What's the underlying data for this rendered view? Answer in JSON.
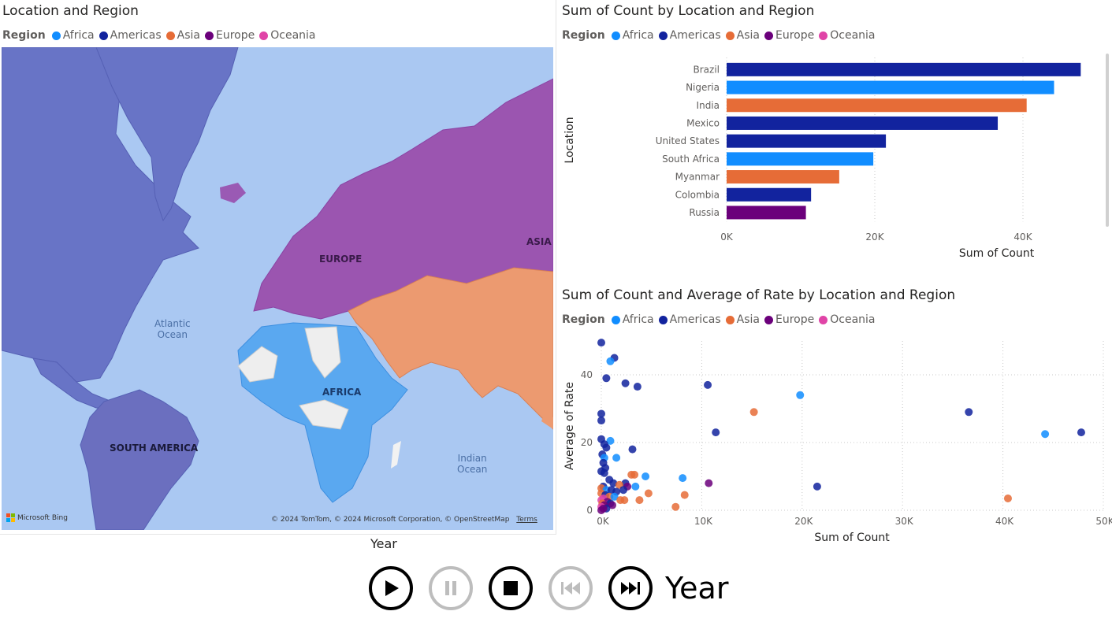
{
  "legend": {
    "title": "Region",
    "items": [
      {
        "label": "Africa",
        "color": "#118dff"
      },
      {
        "label": "Americas",
        "color": "#12239e"
      },
      {
        "label": "Asia",
        "color": "#e66c37"
      },
      {
        "label": "Europe",
        "color": "#6b007b"
      },
      {
        "label": "Oceania",
        "color": "#e044a7"
      }
    ]
  },
  "map": {
    "title": "Location and Region",
    "labels": {
      "europe": "EUROPE",
      "asia": "ASIA",
      "africa": "AFRICA",
      "south_america": "SOUTH AMERICA",
      "atlantic": "Atlantic\nOcean",
      "indian": "Indian\nOcean"
    },
    "brand": "Microsoft Bing",
    "attribution": "© 2024 TomTom, © 2024 Microsoft Corporation, © OpenStreetMap",
    "terms": "Terms"
  },
  "play_axis": {
    "caption": "Year",
    "label": "Year",
    "buttons": [
      {
        "name": "play-icon",
        "enabled": true
      },
      {
        "name": "pause-icon",
        "enabled": false
      },
      {
        "name": "stop-icon",
        "enabled": true
      },
      {
        "name": "previous-icon",
        "enabled": false
      },
      {
        "name": "next-icon",
        "enabled": true
      }
    ]
  },
  "chart_data": [
    {
      "type": "bar",
      "orientation": "horizontal",
      "title": "Sum of Count by Location and Region",
      "xlabel": "Sum of Count",
      "ylabel": "Location",
      "xlim": [
        0,
        50000
      ],
      "xticks": [
        "0K",
        "20K",
        "40K"
      ],
      "xtick_values": [
        0,
        20000,
        40000
      ],
      "grid": true,
      "legend_position": "top-left",
      "categories": [
        "Brazil",
        "Nigeria",
        "India",
        "Mexico",
        "United States",
        "South Africa",
        "Myanmar",
        "Colombia",
        "Russia"
      ],
      "values": [
        47800,
        44200,
        40500,
        36600,
        21500,
        19800,
        15200,
        11400,
        10700
      ],
      "regions": [
        "Americas",
        "Africa",
        "Asia",
        "Americas",
        "Americas",
        "Africa",
        "Asia",
        "Americas",
        "Europe"
      ]
    },
    {
      "type": "scatter",
      "title": "Sum of Count and Average of Rate by Location and Region",
      "xlabel": "Sum of Count",
      "ylabel": "Average of Rate",
      "xlim": [
        0,
        50000
      ],
      "ylim": [
        0,
        50
      ],
      "xticks": [
        "0K",
        "10K",
        "20K",
        "30K",
        "40K",
        "50K"
      ],
      "xtick_values": [
        0,
        10000,
        20000,
        30000,
        40000,
        50000
      ],
      "yticks": [
        "0",
        "20",
        "40"
      ],
      "ytick_values": [
        0,
        20,
        40
      ],
      "grid": true,
      "legend_position": "top-left",
      "points": [
        {
          "x": 0,
          "y": 49.5,
          "region": "Americas"
        },
        {
          "x": 1300,
          "y": 45,
          "region": "Americas"
        },
        {
          "x": 900,
          "y": 44,
          "region": "Africa"
        },
        {
          "x": 500,
          "y": 39,
          "region": "Americas"
        },
        {
          "x": 2400,
          "y": 37.5,
          "region": "Americas"
        },
        {
          "x": 3600,
          "y": 36.5,
          "region": "Americas"
        },
        {
          "x": 10600,
          "y": 37,
          "region": "Americas"
        },
        {
          "x": 19800,
          "y": 34,
          "region": "Africa"
        },
        {
          "x": 15200,
          "y": 29,
          "region": "Asia"
        },
        {
          "x": 36600,
          "y": 29,
          "region": "Americas"
        },
        {
          "x": 0,
          "y": 28.5,
          "region": "Americas"
        },
        {
          "x": 0,
          "y": 26.5,
          "region": "Americas"
        },
        {
          "x": 11400,
          "y": 23,
          "region": "Americas"
        },
        {
          "x": 44200,
          "y": 22.5,
          "region": "Africa"
        },
        {
          "x": 47800,
          "y": 23,
          "region": "Americas"
        },
        {
          "x": 0,
          "y": 21,
          "region": "Americas"
        },
        {
          "x": 900,
          "y": 20.5,
          "region": "Africa"
        },
        {
          "x": 300,
          "y": 19.5,
          "region": "Americas"
        },
        {
          "x": 500,
          "y": 18.5,
          "region": "Americas"
        },
        {
          "x": 3100,
          "y": 18,
          "region": "Americas"
        },
        {
          "x": 100,
          "y": 16.5,
          "region": "Americas"
        },
        {
          "x": 300,
          "y": 15.5,
          "region": "Africa"
        },
        {
          "x": 1500,
          "y": 15.5,
          "region": "Africa"
        },
        {
          "x": 200,
          "y": 14,
          "region": "Americas"
        },
        {
          "x": 400,
          "y": 12.5,
          "region": "Americas"
        },
        {
          "x": 0,
          "y": 11.5,
          "region": "Americas"
        },
        {
          "x": 300,
          "y": 11,
          "region": "Americas"
        },
        {
          "x": 3000,
          "y": 10.5,
          "region": "Asia"
        },
        {
          "x": 3300,
          "y": 10.5,
          "region": "Asia"
        },
        {
          "x": 4400,
          "y": 10,
          "region": "Africa"
        },
        {
          "x": 8100,
          "y": 9.5,
          "region": "Africa"
        },
        {
          "x": 10700,
          "y": 8,
          "region": "Europe"
        },
        {
          "x": 800,
          "y": 9,
          "region": "Americas"
        },
        {
          "x": 1200,
          "y": 8,
          "region": "Americas"
        },
        {
          "x": 2400,
          "y": 8,
          "region": "Americas"
        },
        {
          "x": 1800,
          "y": 7.5,
          "region": "Asia"
        },
        {
          "x": 2600,
          "y": 7,
          "region": "Europe"
        },
        {
          "x": 3400,
          "y": 7,
          "region": "Africa"
        },
        {
          "x": 21500,
          "y": 7,
          "region": "Americas"
        },
        {
          "x": 200,
          "y": 7,
          "region": "Americas"
        },
        {
          "x": 0,
          "y": 6.5,
          "region": "Asia"
        },
        {
          "x": 500,
          "y": 6,
          "region": "Africa"
        },
        {
          "x": 1000,
          "y": 6,
          "region": "Americas"
        },
        {
          "x": 1500,
          "y": 5.5,
          "region": "Americas"
        },
        {
          "x": 2200,
          "y": 6,
          "region": "Americas"
        },
        {
          "x": 4700,
          "y": 5,
          "region": "Asia"
        },
        {
          "x": 0,
          "y": 5,
          "region": "Asia"
        },
        {
          "x": 400,
          "y": 4.5,
          "region": "Americas"
        },
        {
          "x": 800,
          "y": 4,
          "region": "Asia"
        },
        {
          "x": 1300,
          "y": 4,
          "region": "Africa"
        },
        {
          "x": 8300,
          "y": 4.5,
          "region": "Asia"
        },
        {
          "x": 40500,
          "y": 3.5,
          "region": "Asia"
        },
        {
          "x": 200,
          "y": 3.5,
          "region": "Oceania"
        },
        {
          "x": 1900,
          "y": 3,
          "region": "Asia"
        },
        {
          "x": 2300,
          "y": 3,
          "region": "Asia"
        },
        {
          "x": 3800,
          "y": 3,
          "region": "Asia"
        },
        {
          "x": 0,
          "y": 3,
          "region": "Oceania"
        },
        {
          "x": 600,
          "y": 2.5,
          "region": "Europe"
        },
        {
          "x": 100,
          "y": 2,
          "region": "Asia"
        },
        {
          "x": 900,
          "y": 2,
          "region": "Americas"
        },
        {
          "x": 300,
          "y": 1.5,
          "region": "Europe"
        },
        {
          "x": 1100,
          "y": 1.5,
          "region": "Europe"
        },
        {
          "x": 7400,
          "y": 1,
          "region": "Asia"
        },
        {
          "x": 0,
          "y": 1,
          "region": "Oceania"
        },
        {
          "x": 500,
          "y": 0.5,
          "region": "Americas"
        },
        {
          "x": 200,
          "y": 0.5,
          "region": "Europe"
        },
        {
          "x": 0,
          "y": 0,
          "region": "Europe"
        }
      ]
    }
  ]
}
